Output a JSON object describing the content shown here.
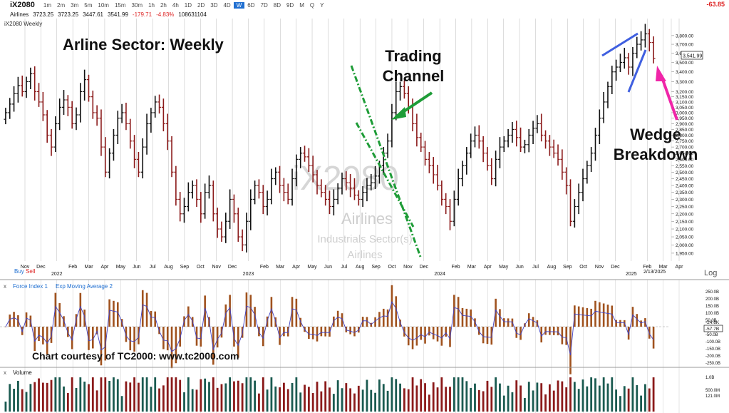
{
  "app": {
    "symbol": "iX2080",
    "quote_label": "Airlines",
    "timeframes": [
      "1m",
      "2m",
      "3m",
      "5m",
      "10m",
      "15m",
      "30m",
      "1h",
      "2h",
      "4h",
      "1D",
      "2D",
      "3D",
      "4D",
      "W",
      "6D",
      "7D",
      "8D",
      "9D",
      "M",
      "Q",
      "Y"
    ],
    "active_timeframe": "W",
    "quote_open": "3723.25",
    "quote_high": "3723.25",
    "quote_low": "3447.61",
    "quote_last": "3541.99",
    "quote_change": "-179.71",
    "quote_change_pct": "-4.83%",
    "quote_volume": "108631104",
    "right_change": "-63.85",
    "chart_label": "iX2080 Weekly"
  },
  "annotations": {
    "main_title": "Arline Sector:  Weekly",
    "trading_channel_1": "Trading",
    "trading_channel_2": "Channel",
    "wedge_1": "Wedge",
    "wedge_2": "Breakdown",
    "courtesy": "Chart courtesy of TC2000:  www.tc2000.com",
    "watermark_symbol": "iX2080",
    "watermark_name": "Airlines",
    "watermark_sector": "Industrials Sector(s)",
    "watermark_industry": "Airlines",
    "buy_label": "Buy",
    "sell_label": "Sell",
    "log_label": "Log",
    "date_marker": "2/13/2025",
    "last_price_tag": "3,541.99"
  },
  "panels": {
    "force_index_label": "Force Index 1",
    "ema_label": "Exp Moving Average 2",
    "volume_label": "Volume",
    "close_glyph": "x",
    "force_tag": "-57.7B",
    "force_tag2": "-24.6K"
  },
  "colors": {
    "up": "#111111",
    "down": "#8b1a1a",
    "channel": "#1e9c37",
    "wedge": "#3f5fe0",
    "pink": "#f025a8",
    "force_line": "#4040c0",
    "force_bar": "#a0521e",
    "volume_up": "#1a5a50",
    "volume_down": "#8b1a1a",
    "accent": "#1f6fd1",
    "negative": "#dd2222"
  },
  "chart_data": [
    {
      "type": "ohlc",
      "title": "Arline Sector:  Weekly",
      "x_axis_months": [
        "Nov",
        "Dec",
        "2022",
        "Feb",
        "Mar",
        "Apr",
        "May",
        "Jun",
        "Jul",
        "Aug",
        "Sep",
        "Oct",
        "Nov",
        "Dec",
        "2023",
        "Feb",
        "Mar",
        "Apr",
        "May",
        "Jun",
        "Jul",
        "Aug",
        "Sep",
        "Oct",
        "Nov",
        "Dec",
        "2024",
        "Feb",
        "Mar",
        "Apr",
        "May",
        "Jun",
        "Jul",
        "Aug",
        "Sep",
        "Oct",
        "Nov",
        "Dec",
        "2025",
        "Feb",
        "Mar",
        "Apr"
      ],
      "y_ticks": [
        1950,
        2000,
        2050,
        2100,
        2150,
        2200,
        2250,
        2300,
        2350,
        2400,
        2450,
        2500,
        2550,
        2600,
        2650,
        2700,
        2750,
        2800,
        2850,
        2900,
        2950,
        3000,
        3050,
        3100,
        3150,
        3200,
        3300,
        3400,
        3500,
        3600,
        3700,
        3800
      ],
      "y_tick_labels": [
        "1,950.00",
        "2,000.00",
        "2,050.00",
        "2,100.00",
        "2,150.00",
        "2,200.00",
        "2,250.00",
        "2,300.00",
        "2,350.00",
        "2,400.00",
        "2,450.00",
        "2,500.00",
        "2,550.00",
        "2,600.00",
        "2,650.00",
        "2,700.00",
        "2,750.00",
        "2,800.00",
        "2,850.00",
        "2,900.00",
        "2,950.00",
        "3,000.00",
        "3,050.00",
        "3,100.00",
        "3,150.00",
        "3,200.00",
        "3,300.00",
        "3,400.00",
        "3,500.00",
        "3,600.00",
        "3,700.00",
        "3,800.00"
      ],
      "y_range": [
        1920,
        3900
      ],
      "scale": "log",
      "weekly_close": [
        3000,
        3080,
        3180,
        3260,
        3200,
        3300,
        3380,
        3200,
        3100,
        2980,
        2800,
        2700,
        2900,
        3050,
        3120,
        3050,
        2900,
        2980,
        3200,
        3320,
        3150,
        3000,
        2950,
        2700,
        2500,
        2650,
        2800,
        2950,
        3000,
        2900,
        2750,
        2600,
        2500,
        2700,
        2900,
        3000,
        3100,
        3050,
        2900,
        2750,
        2500,
        2300,
        2200,
        2250,
        2350,
        2400,
        2300,
        2200,
        2350,
        2400,
        2200,
        2100,
        2050,
        2150,
        2300,
        2200,
        2050,
        2000,
        2150,
        2300,
        2400,
        2350,
        2250,
        2300,
        2450,
        2500,
        2400,
        2350,
        2300,
        2450,
        2600,
        2650,
        2620,
        2550,
        2480,
        2400,
        2350,
        2300,
        2250,
        2300,
        2380,
        2450,
        2420,
        2380,
        2330,
        2300,
        2350,
        2400,
        2420,
        2470,
        2550,
        2650,
        2750,
        3000,
        3200,
        3250,
        3180,
        3050,
        2900,
        2780,
        2700,
        2600,
        2550,
        2480,
        2400,
        2300,
        2250,
        2150,
        2300,
        2450,
        2550,
        2650,
        2750,
        2800,
        2750,
        2650,
        2550,
        2450,
        2600,
        2700,
        2750,
        2800,
        2850,
        2780,
        2700,
        2720,
        2800,
        2860,
        2900,
        2800,
        2750,
        2700,
        2650,
        2600,
        2500,
        2400,
        2150,
        2250,
        2350,
        2450,
        2550,
        2650,
        2800,
        2950,
        3100,
        3250,
        3400,
        3450,
        3500,
        3550,
        3450,
        3600,
        3700,
        3750,
        3820,
        3720,
        3542
      ],
      "force_index_range": [
        -250,
        250
      ],
      "force_index_ticks": [
        "250.0B",
        "200.0B",
        "150.0B",
        "100.0B",
        "50.0B",
        "0",
        "-50.0B",
        "-100.0B",
        "-150.0B",
        "-200.0B",
        "-250.0B"
      ],
      "volume_ticks": [
        "1.0B",
        "500.0M",
        "121.0M"
      ]
    }
  ]
}
